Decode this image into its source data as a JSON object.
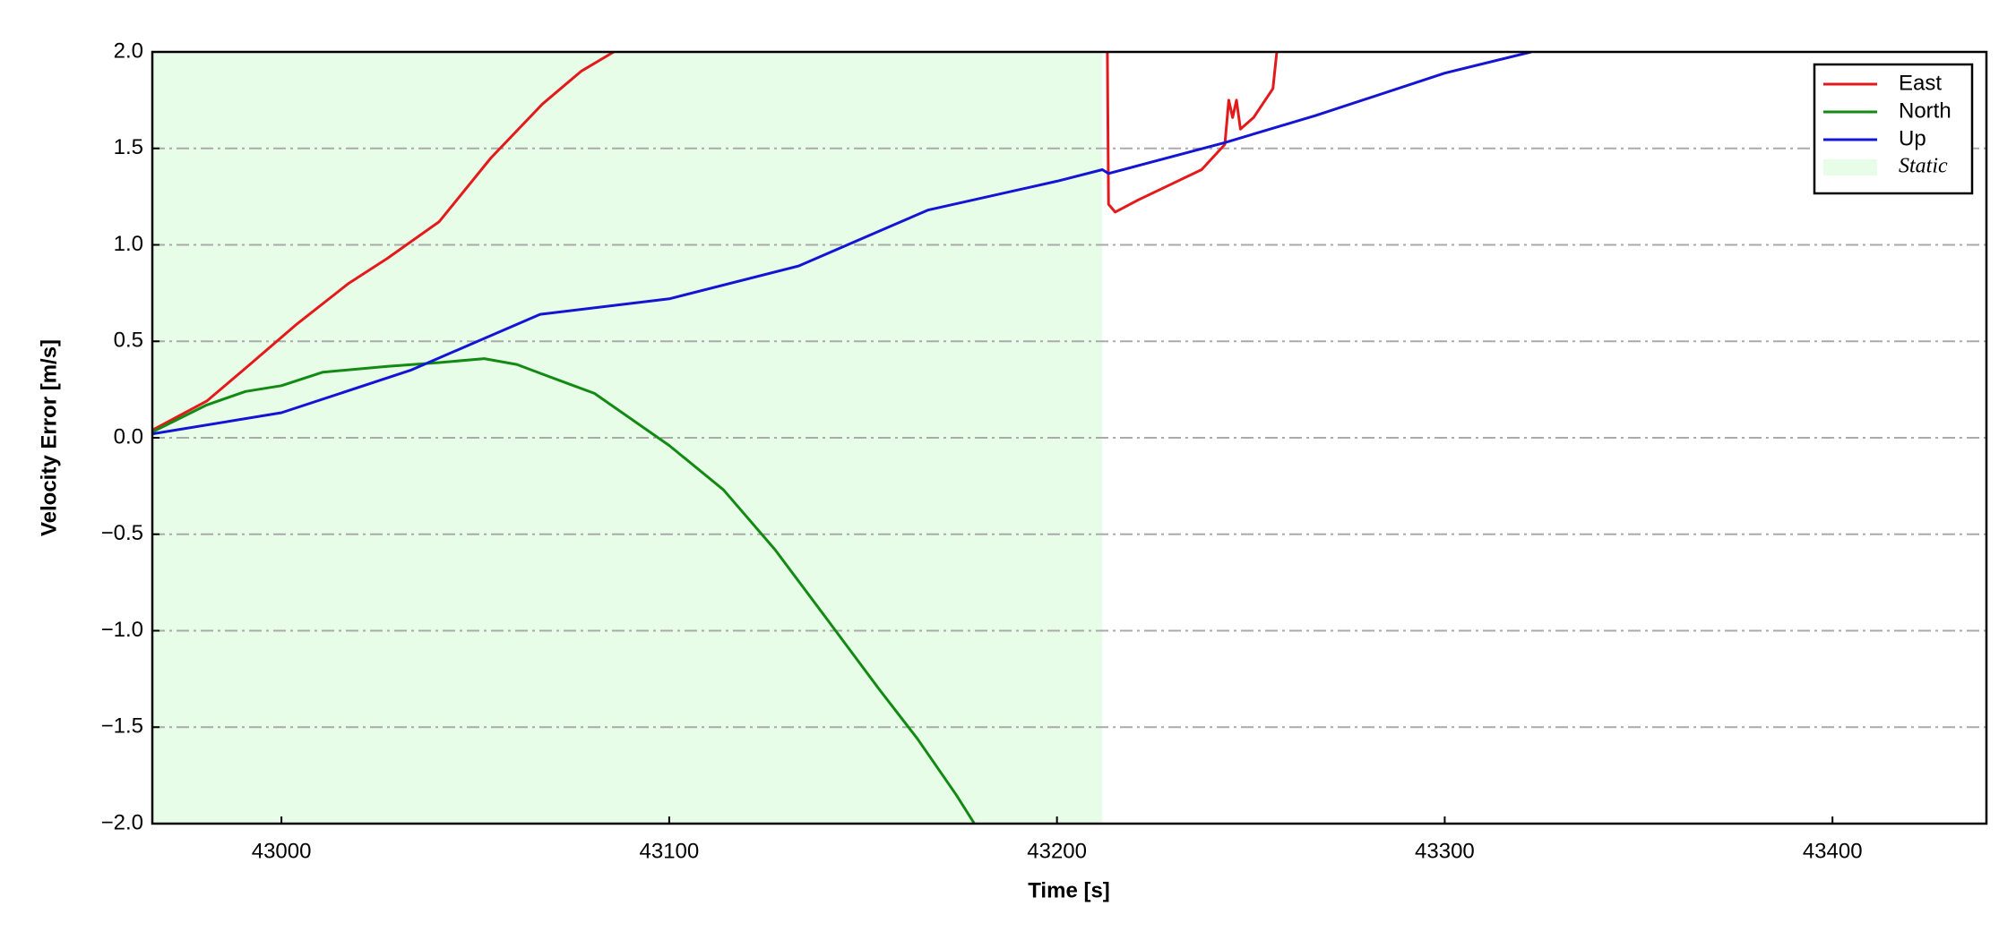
{
  "chart_data": {
    "type": "line",
    "xlabel": "Time [s]",
    "ylabel": "Velocity Error [m/s]",
    "xlim": [
      42966.7,
      43439.7
    ],
    "ylim": [
      -2.0,
      2.0
    ],
    "xticks": [
      43000,
      43100,
      43200,
      43300,
      43400
    ],
    "yticks": [
      {
        "value": -2.0,
        "label": "−2.0"
      },
      {
        "value": -1.5,
        "label": "−1.5"
      },
      {
        "value": -1.0,
        "label": "−1.0"
      },
      {
        "value": -0.5,
        "label": "−0.5"
      },
      {
        "value": 0.0,
        "label": "0.0"
      },
      {
        "value": 0.5,
        "label": "0.5"
      },
      {
        "value": 1.0,
        "label": "1.0"
      },
      {
        "value": 1.5,
        "label": "1.5"
      },
      {
        "value": 2.0,
        "label": "2.0"
      }
    ],
    "grid": true,
    "legend": "upper right",
    "static_region": {
      "label": "Static",
      "x": [
        42966.7,
        43211.7
      ],
      "color": "#e8fde8"
    },
    "series": [
      {
        "name": "East",
        "color": "#e31a1c",
        "x": [
          42966.7,
          42980.7,
          42990.7,
          43004,
          43017.3,
          43027.3,
          43040.7,
          43054,
          43067.3,
          43077.3,
          43085.7,
          null,
          43213,
          43213.3,
          43215,
          43220.7,
          43229,
          43237.3,
          43243.3,
          43244.3,
          43245.3,
          43246.3,
          43247.3,
          43250.7,
          43255.7,
          43256.7
        ],
        "values": [
          0.04,
          0.19,
          0.36,
          0.59,
          0.8,
          0.93,
          1.12,
          1.45,
          1.73,
          1.9,
          2.0,
          null,
          2.0,
          1.21,
          1.17,
          1.23,
          1.31,
          1.39,
          1.52,
          1.75,
          1.66,
          1.75,
          1.6,
          1.66,
          1.81,
          2.0
        ]
      },
      {
        "name": "North",
        "color": "#138a13",
        "x": [
          42966.7,
          42980.7,
          42990.7,
          43000,
          43010.7,
          43027.3,
          43040.7,
          43052.3,
          43060.7,
          43067.3,
          43080.7,
          43100,
          43114,
          43127.3,
          43140.7,
          43154,
          43164,
          43174,
          43178.7
        ],
        "values": [
          0.03,
          0.17,
          0.24,
          0.27,
          0.34,
          0.37,
          0.39,
          0.41,
          0.38,
          0.33,
          0.23,
          -0.04,
          -0.27,
          -0.58,
          -0.94,
          -1.3,
          -1.56,
          -1.85,
          -2.0
        ]
      },
      {
        "name": "Up",
        "color": "#1414d4",
        "x": [
          42966.7,
          43000,
          43033.3,
          43066.7,
          43100,
          43133.3,
          43166.7,
          43200,
          43211.7,
          43213.3,
          43243.3,
          43266.7,
          43300,
          43322.3
        ],
        "values": [
          0.02,
          0.13,
          0.35,
          0.64,
          0.72,
          0.89,
          1.18,
          1.33,
          1.39,
          1.37,
          1.53,
          1.67,
          1.89,
          2.0
        ]
      }
    ]
  }
}
